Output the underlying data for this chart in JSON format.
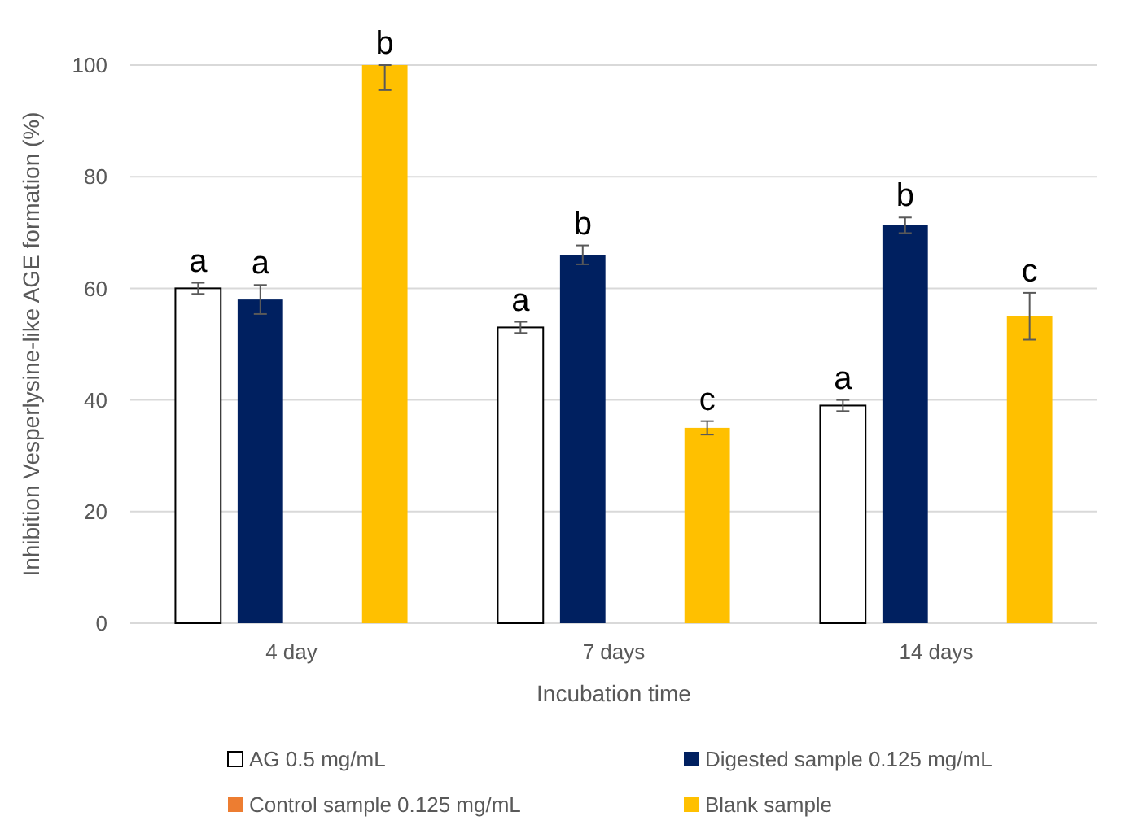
{
  "chart_data": {
    "type": "bar",
    "xlabel": "Incubation time",
    "ylabel": "Inhibition Vesperlysine-like AGE formation (%)",
    "categories": [
      "4 day",
      "7 days",
      "14 days"
    ],
    "series": [
      {
        "name": "AG 0.5 mg/mL",
        "color": "#ffffff",
        "values": [
          60,
          53,
          39
        ],
        "errors": [
          1,
          1,
          1
        ],
        "value_labels": [
          "a",
          "a",
          "a"
        ]
      },
      {
        "name": "Digested sample 0.125 mg/mL",
        "color": "#002060",
        "values": [
          58,
          66,
          71.3
        ],
        "errors": [
          2.6,
          1.7,
          1.4
        ],
        "value_labels": [
          "a",
          "b",
          "b"
        ]
      },
      {
        "name": "Control sample 0.125 mg/mL",
        "color": "#ed7d31",
        "values": [
          null,
          null,
          null
        ]
      },
      {
        "name": "Blank sample",
        "color": "#ffc000",
        "values": [
          100,
          35,
          55
        ],
        "errors": [
          [
            95.5,
            100
          ],
          1.2,
          4.2
        ],
        "value_labels": [
          "b",
          "c",
          "c"
        ]
      }
    ],
    "ylim": [
      0,
      100
    ],
    "yticks": [
      0,
      20,
      40,
      60,
      80,
      100
    ],
    "grid": "y",
    "legend": "bottom"
  }
}
